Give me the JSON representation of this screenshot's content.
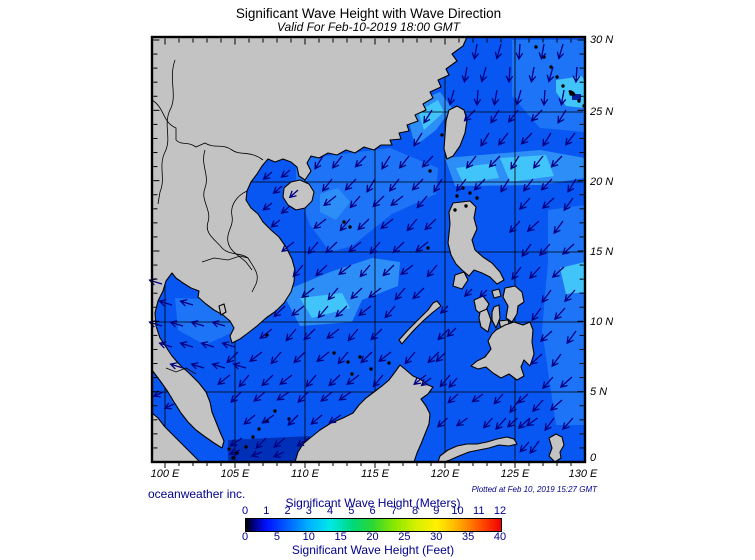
{
  "title": "Significant Wave Height with Wave Direction",
  "subtitle": "Valid For Feb-10-2019 18:00 GMT",
  "credit": "oceanweather inc.",
  "plotted": "Plotted at Feb 10, 2019 15:27 GMT",
  "axes": {
    "lon_labels": [
      "100 E",
      "105 E",
      "110 E",
      "115 E",
      "120 E",
      "125 E",
      "130 E"
    ],
    "lat_labels": [
      "30 N",
      "25 N",
      "20 N",
      "15 N",
      "10 N",
      "5 N",
      "0"
    ]
  },
  "legend": {
    "meters_title": "Significant Wave Height (Meters)",
    "feet_title": "Significant Wave Height (Feet)",
    "meters_ticks": [
      "0",
      "1",
      "2",
      "3",
      "4",
      "5",
      "6",
      "7",
      "8",
      "9",
      "10",
      "11",
      "12"
    ],
    "feet_ticks": [
      "0",
      "5",
      "10",
      "15",
      "20",
      "25",
      "30",
      "35",
      "40"
    ],
    "gradient": [
      "#000000 0%",
      "#000080 3%",
      "#0010ff 8%",
      "#0068ff 17%",
      "#00b4ff 25%",
      "#00e8e8 33%",
      "#00d878 42%",
      "#30d830 50%",
      "#88e800 58%",
      "#d8f000 67%",
      "#fff000 75%",
      "#ffb000 83%",
      "#ff5000 92%",
      "#f00000 100%"
    ]
  },
  "colors": {
    "sea_base": "#0857F2",
    "sea_subtle": "#1E74F7",
    "sea_light": "#2E8EF8",
    "sea_cyan": "#41C4FA",
    "sea_dark": "#0130B8",
    "land": "#C3C3C3",
    "arrow": "#000080",
    "text_navy": "#00008B"
  }
}
